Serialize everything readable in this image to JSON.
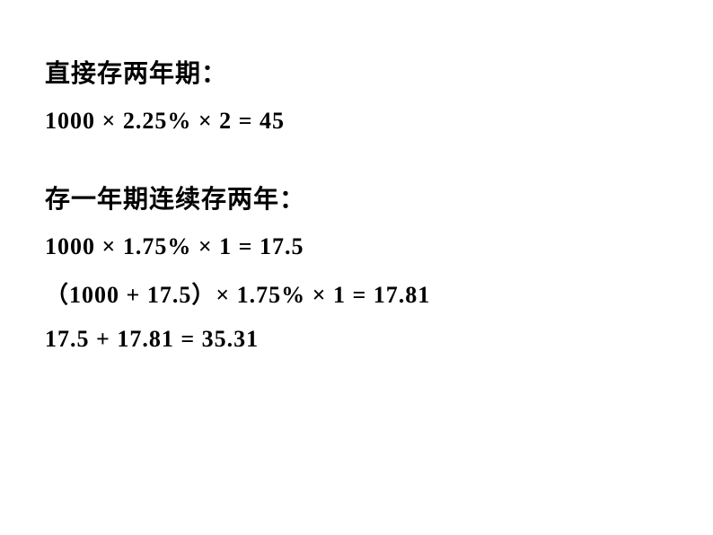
{
  "sections": [
    {
      "heading": "直接存两年期：",
      "equations": [
        "1000 × 2.25% × 2 = 45"
      ]
    },
    {
      "heading": "存一年期连续存两年：",
      "equations": [
        "1000 × 1.75% × 1 = 17.5",
        "（1000 + 17.5）× 1.75% × 1 = 17.81",
        "17.5 + 17.81 = 35.31"
      ]
    }
  ],
  "styling": {
    "background_color": "#ffffff",
    "text_color": "#000000",
    "heading_fontsize": 28,
    "equation_fontsize": 26,
    "font_weight": "bold",
    "font_family": "SimSun",
    "section_spacing": 50,
    "line_spacing": 18
  }
}
